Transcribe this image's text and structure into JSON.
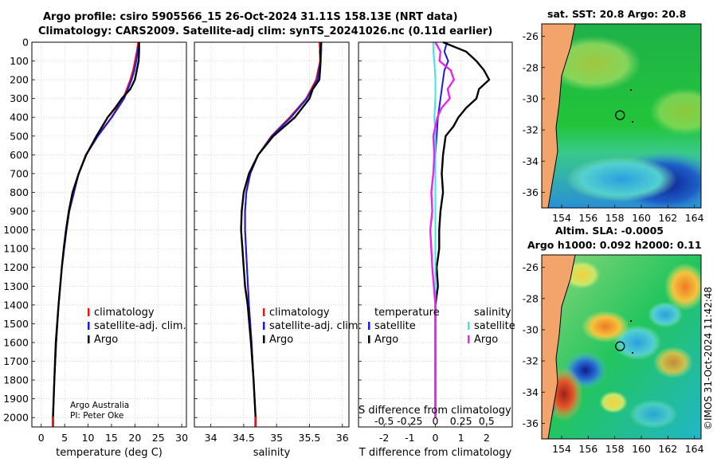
{
  "title_line1": "Argo profile: csiro 5905566_15 26-Oct-2024 31.11S 158.13E (NRT data)",
  "title_line2": "Climatology: CARS2009. Satellite-adj clim: synTS_20241026.nc (0.11d earlier)",
  "credit": {
    "line1": "Argo Australia",
    "line2": "PI: Peter Oke"
  },
  "watermark": "©IMOS 31-Oct-2024 11:42:48",
  "colors": {
    "climatology": "#e8161c",
    "satellite": "#1a1ae6",
    "argo": "#000000",
    "sal_satellite": "#3fe3e8",
    "sal_argo": "#ee22ee"
  },
  "chart_data": [
    {
      "type": "line",
      "name": "temperature",
      "xlabel": "temperature (deg C)",
      "ylabel": "",
      "xlim": [
        -2,
        31
      ],
      "ylim": [
        2050,
        0
      ],
      "xticks": [
        0,
        5,
        10,
        15,
        20,
        25,
        30
      ],
      "yticks": [
        0,
        100,
        200,
        300,
        400,
        500,
        600,
        700,
        800,
        900,
        1000,
        1100,
        1200,
        1300,
        1400,
        1500,
        1600,
        1700,
        1800,
        1900,
        2000
      ],
      "legend": [
        "climatology",
        "satellite-adj. clim.",
        "Argo"
      ],
      "series": [
        {
          "name": "climatology",
          "depth": [
            0,
            50,
            100,
            150,
            200,
            300,
            400,
            500,
            600,
            700,
            800,
            900,
            1000,
            1200,
            1400,
            1600,
            1800,
            2000
          ],
          "values": [
            20.7,
            20.4,
            20,
            19.6,
            19,
            17.5,
            15,
            12,
            9.5,
            8,
            7,
            6,
            5.4,
            4.4,
            3.7,
            3.2,
            2.8,
            2.5
          ]
        },
        {
          "name": "satellite-adj. clim.",
          "depth": [
            0,
            50,
            100,
            150,
            200,
            300,
            400,
            500,
            600,
            700,
            800,
            900,
            1000,
            1200,
            1400,
            1600,
            1800,
            2000
          ],
          "values": [
            20.9,
            20.6,
            20.3,
            19.9,
            19.3,
            17.7,
            15.1,
            12.1,
            9.6,
            8,
            7,
            6,
            5.4,
            4.4,
            3.7,
            3.2,
            2.8,
            2.5
          ]
        },
        {
          "name": "Argo",
          "depth": [
            0,
            50,
            100,
            150,
            200,
            250,
            300,
            350,
            400,
            450,
            500,
            600,
            700,
            800,
            900,
            1000,
            1100,
            1200,
            1400,
            1600,
            1800,
            2000
          ],
          "values": [
            20.9,
            20.9,
            20.8,
            20.4,
            20,
            19,
            17.2,
            15.8,
            14.2,
            13,
            11.8,
            9.6,
            8,
            6.7,
            5.9,
            5.3,
            4.8,
            4.4,
            3.7,
            3.1,
            2.8,
            2.5
          ]
        }
      ]
    },
    {
      "type": "line",
      "name": "salinity",
      "xlabel": "salinity",
      "ylabel": "",
      "xlim": [
        33.75,
        36.1
      ],
      "ylim": [
        2050,
        0
      ],
      "xticks": [
        34,
        34.5,
        35,
        35.5,
        36
      ],
      "legend": [
        "climatology",
        "satellite-adj. clim.",
        "Argo"
      ],
      "series": [
        {
          "name": "climatology",
          "depth": [
            0,
            50,
            100,
            200,
            300,
            400,
            500,
            600,
            700,
            800,
            900,
            1000,
            1200,
            1400,
            1600,
            1800,
            2000
          ],
          "values": [
            35.65,
            35.66,
            35.66,
            35.6,
            35.45,
            35.2,
            34.92,
            34.72,
            34.6,
            34.54,
            34.52,
            34.52,
            34.55,
            34.58,
            34.62,
            34.65,
            34.68
          ]
        },
        {
          "name": "satellite-adj. clim.",
          "depth": [
            0,
            50,
            100,
            200,
            300,
            400,
            500,
            600,
            700,
            800,
            900,
            1000,
            1200,
            1400,
            1600,
            1800,
            2000
          ],
          "values": [
            35.68,
            35.68,
            35.67,
            35.62,
            35.46,
            35.22,
            34.93,
            34.72,
            34.6,
            34.54,
            34.52,
            34.52,
            34.55,
            34.58,
            34.62,
            34.65,
            34.68
          ]
        },
        {
          "name": "Argo",
          "depth": [
            0,
            50,
            100,
            200,
            250,
            300,
            400,
            500,
            600,
            700,
            800,
            900,
            1000,
            1100,
            1200,
            1300,
            1400,
            1600,
            1800,
            2000
          ],
          "values": [
            35.68,
            35.66,
            35.67,
            35.65,
            35.55,
            35.5,
            35.28,
            34.95,
            34.72,
            34.58,
            34.5,
            34.47,
            34.46,
            34.48,
            34.5,
            34.52,
            34.56,
            34.61,
            34.65,
            34.68
          ]
        }
      ]
    },
    {
      "type": "line",
      "name": "difference",
      "xlabel": "T difference from climatology",
      "ylabel": "",
      "top_label": "S difference from climatology",
      "xlim": [
        -3,
        3
      ],
      "ylim": [
        2050,
        0
      ],
      "xticks": [
        -2,
        -1,
        0,
        1,
        2
      ],
      "s_xticks": [
        "-0.5",
        "-0.25",
        "0",
        "0.25",
        "0.5"
      ],
      "legend_left": {
        "header": "temperature",
        "items": [
          "satellite",
          "Argo"
        ]
      },
      "legend_right": {
        "header": "salinity",
        "items": [
          "satellite",
          "Argo"
        ]
      },
      "series": [
        {
          "name": "T satellite",
          "depth": [
            0,
            50,
            100,
            150,
            200,
            300,
            400,
            500,
            600,
            800,
            1000,
            1200,
            1400,
            1600,
            1800,
            2000
          ],
          "values": [
            0.45,
            0.35,
            0.5,
            0.35,
            0.3,
            0.2,
            0.1,
            0.05,
            0,
            0,
            0,
            0,
            0,
            0,
            0,
            0
          ]
        },
        {
          "name": "T Argo",
          "depth": [
            0,
            50,
            100,
            150,
            200,
            250,
            300,
            350,
            400,
            450,
            500,
            600,
            700,
            800,
            900,
            1000,
            1100,
            1200,
            1300,
            1400,
            1500,
            1600,
            1800,
            2000
          ],
          "values": [
            0.3,
            1.2,
            1.6,
            1.9,
            2.1,
            1.7,
            1.6,
            1.2,
            0.9,
            0.7,
            0.4,
            0.3,
            0.25,
            0.3,
            0.2,
            0.15,
            0.15,
            0.05,
            0.1,
            0,
            0,
            0,
            0,
            0
          ]
        },
        {
          "name": "S satellite",
          "depth": [
            0,
            50,
            100,
            200,
            300,
            400,
            500,
            600,
            800,
            1000,
            1200,
            1400,
            1600,
            1800,
            2000
          ],
          "values": [
            -0.02,
            -0.02,
            -0.01,
            0,
            0,
            -0.01,
            0,
            0,
            0,
            0,
            0,
            0,
            0,
            0,
            0
          ]
        },
        {
          "name": "S Argo",
          "depth": [
            0,
            50,
            100,
            150,
            200,
            250,
            300,
            350,
            400,
            500,
            600,
            700,
            800,
            900,
            1000,
            1100,
            1200,
            1400,
            1600,
            1800,
            2000
          ],
          "values": [
            0,
            0.05,
            0.04,
            0.15,
            0.18,
            0.12,
            0.14,
            0.06,
            0.02,
            -0.02,
            -0.01,
            -0.02,
            -0.04,
            -0.03,
            -0.05,
            -0.04,
            -0.03,
            0,
            0,
            0,
            0
          ]
        }
      ]
    },
    {
      "type": "heatmap",
      "name": "sat-sst-map",
      "title": "sat. SST: 20.8 Argo: 20.8",
      "xticks": [
        154,
        156,
        158,
        160,
        162,
        164
      ],
      "yticks": [
        -26,
        -28,
        -30,
        -32,
        -34,
        -36
      ],
      "xlim": [
        152.5,
        164.5
      ],
      "ylim": [
        -37,
        -25.2
      ],
      "argo_lon": 158.13,
      "argo_lat": -31.11
    },
    {
      "type": "heatmap",
      "name": "altim-sla-map",
      "title": "Altim. SLA: -0.0005",
      "subtitle": "Argo h1000: 0.092 h2000: 0.11",
      "xticks": [
        154,
        156,
        158,
        160,
        162,
        164
      ],
      "yticks": [
        -26,
        -28,
        -30,
        -32,
        -34,
        -36
      ],
      "xlim": [
        152.5,
        164.5
      ],
      "ylim": [
        -37,
        -25.2
      ],
      "argo_lon": 158.13,
      "argo_lat": -31.11
    }
  ]
}
